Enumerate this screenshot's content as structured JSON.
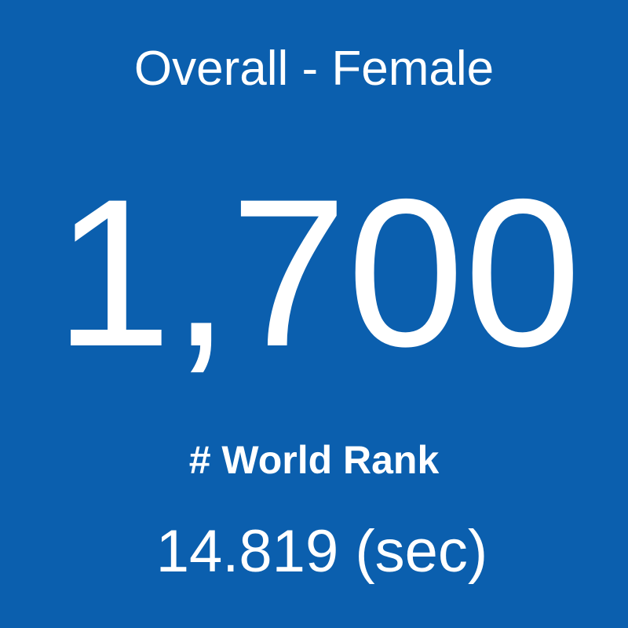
{
  "tile": {
    "title": "Overall - Female",
    "value": "1,700",
    "label": "# World Rank",
    "time": "14.819 (sec)"
  }
}
